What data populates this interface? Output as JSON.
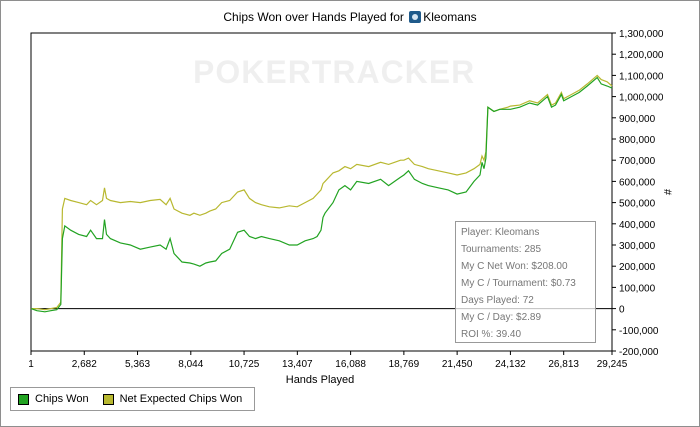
{
  "title": {
    "text": "Chips Won over Hands Played for",
    "player": "Kleomans"
  },
  "watermark": "POKERTRACKER",
  "chart_data": {
    "type": "line",
    "title": "Chips Won over Hands Played for Kleomans",
    "xlabel": "Hands Played",
    "ylabel": "#",
    "xlim": [
      1,
      29245
    ],
    "ylim": [
      -200000,
      1300000
    ],
    "x_ticks": [
      "1",
      "2,682",
      "5,363",
      "8,044",
      "10,725",
      "13,407",
      "16,088",
      "18,769",
      "21,450",
      "24,132",
      "26,813",
      "29,245"
    ],
    "y_ticks": [
      "1,300,000",
      "1,200,000",
      "1,100,000",
      "1,000,000",
      "900,000",
      "800,000",
      "700,000",
      "600,000",
      "500,000",
      "400,000",
      "300,000",
      "200,000",
      "100,000",
      "0",
      "-100,000",
      "-200,000"
    ],
    "grid": false,
    "legend_placement": "bottom-left",
    "series": [
      {
        "name": "Chips Won",
        "color": "#22a322",
        "x": [
          1,
          300,
          700,
          1000,
          1300,
          1500,
          1580,
          1700,
          2000,
          2400,
          2800,
          3000,
          3300,
          3600,
          3700,
          3800,
          4000,
          4500,
          5000,
          5500,
          6000,
          6500,
          6800,
          7000,
          7200,
          7600,
          8000,
          8200,
          8500,
          8800,
          9000,
          9300,
          9600,
          10000,
          10400,
          10725,
          11000,
          11300,
          11600,
          12000,
          12500,
          13000,
          13400,
          13800,
          14200,
          14400,
          14600,
          14700,
          14800,
          15200,
          15500,
          15800,
          16088,
          16400,
          17000,
          17600,
          18000,
          18300,
          18600,
          18769,
          19000,
          19300,
          19700,
          20000,
          20500,
          21000,
          21450,
          21900,
          22300,
          22600,
          22700,
          22800,
          22900,
          23000,
          23300,
          23600,
          24000,
          24132,
          24600,
          25100,
          25500,
          26000,
          26200,
          26400,
          26700,
          26813,
          27200,
          27600,
          28000,
          28500,
          28700,
          29000,
          29245
        ],
        "y": [
          0,
          -10000,
          -15000,
          -10000,
          -5000,
          20000,
          330000,
          390000,
          370000,
          350000,
          340000,
          370000,
          330000,
          330000,
          420000,
          350000,
          330000,
          310000,
          300000,
          280000,
          290000,
          300000,
          280000,
          330000,
          260000,
          220000,
          215000,
          210000,
          200000,
          215000,
          220000,
          225000,
          260000,
          280000,
          360000,
          370000,
          340000,
          330000,
          340000,
          330000,
          320000,
          300000,
          300000,
          320000,
          330000,
          340000,
          370000,
          430000,
          450000,
          500000,
          560000,
          580000,
          560000,
          600000,
          590000,
          610000,
          580000,
          600000,
          620000,
          630000,
          650000,
          610000,
          590000,
          580000,
          570000,
          560000,
          540000,
          550000,
          600000,
          630000,
          690000,
          660000,
          710000,
          950000,
          930000,
          940000,
          940000,
          940000,
          950000,
          970000,
          960000,
          1000000,
          950000,
          960000,
          1010000,
          980000,
          1000000,
          1020000,
          1050000,
          1090000,
          1060000,
          1050000,
          1040000
        ]
      },
      {
        "name": "Net Expected Chips Won",
        "color": "#b8b830",
        "x": [
          1,
          300,
          700,
          1000,
          1300,
          1500,
          1580,
          1700,
          2000,
          2400,
          2800,
          3000,
          3300,
          3600,
          3700,
          3800,
          4000,
          4500,
          5000,
          5500,
          6000,
          6500,
          6800,
          7000,
          7200,
          7600,
          8000,
          8200,
          8500,
          8800,
          9000,
          9300,
          9600,
          10000,
          10400,
          10725,
          11000,
          11300,
          11600,
          12000,
          12500,
          13000,
          13400,
          13800,
          14200,
          14400,
          14600,
          14700,
          14800,
          15200,
          15500,
          15800,
          16088,
          16400,
          17000,
          17600,
          18000,
          18300,
          18600,
          18769,
          19000,
          19300,
          19700,
          20000,
          20500,
          21000,
          21450,
          21900,
          22300,
          22600,
          22700,
          22800,
          22900,
          23000,
          23300,
          23600,
          24000,
          24132,
          24600,
          25100,
          25500,
          26000,
          26200,
          26400,
          26700,
          26813,
          27200,
          27600,
          28000,
          28500,
          28700,
          29000,
          29245
        ],
        "y": [
          0,
          0,
          -5000,
          0,
          5000,
          30000,
          470000,
          520000,
          510000,
          500000,
          490000,
          510000,
          490000,
          510000,
          570000,
          520000,
          510000,
          500000,
          505000,
          500000,
          510000,
          515000,
          490000,
          520000,
          470000,
          450000,
          440000,
          450000,
          440000,
          450000,
          460000,
          470000,
          500000,
          510000,
          550000,
          560000,
          520000,
          500000,
          490000,
          480000,
          475000,
          485000,
          480000,
          500000,
          520000,
          540000,
          560000,
          590000,
          600000,
          640000,
          650000,
          670000,
          660000,
          680000,
          670000,
          690000,
          680000,
          690000,
          700000,
          700000,
          710000,
          680000,
          670000,
          660000,
          650000,
          640000,
          630000,
          640000,
          660000,
          680000,
          720000,
          700000,
          740000,
          950000,
          930000,
          940000,
          950000,
          955000,
          960000,
          980000,
          970000,
          1010000,
          960000,
          970000,
          1020000,
          990000,
          1010000,
          1030000,
          1060000,
          1100000,
          1080000,
          1070000,
          1050000
        ]
      }
    ]
  },
  "stats": {
    "player": "Player: Kleomans",
    "tournaments": "Tournaments: 285",
    "net_won": "My C Net Won: $208.00",
    "per_tournament": "My C / Tournament: $0.73",
    "days_played": "Days Played: 72",
    "per_day": "My C / Day: $2.89",
    "roi": "ROI %: 39.40"
  },
  "legend": {
    "chips_won": "Chips Won",
    "net_expected": "Net Expected Chips Won"
  }
}
